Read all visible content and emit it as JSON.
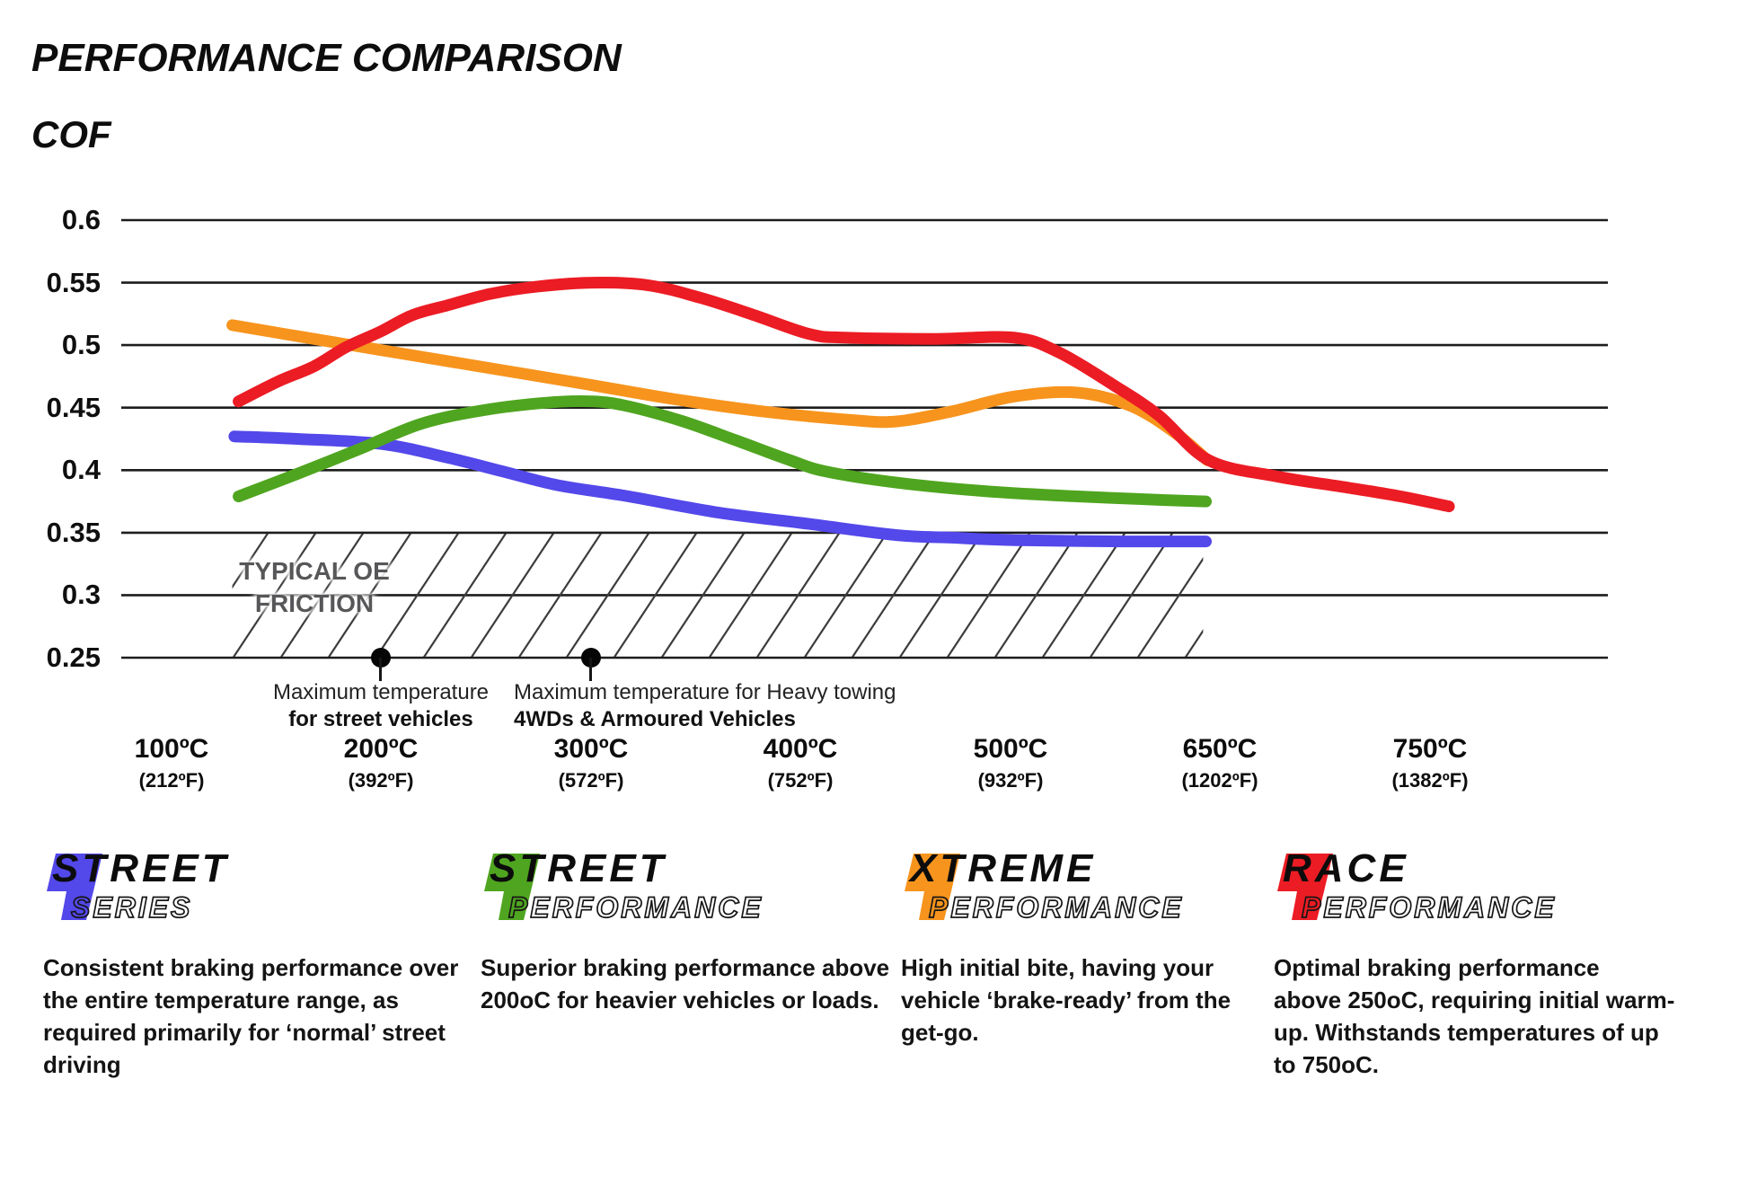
{
  "page": {
    "title": "PERFORMANCE COMPARISON",
    "axis_label": "COF"
  },
  "chart_data": {
    "type": "line",
    "title": "PERFORMANCE COMPARISON",
    "ylabel": "COF",
    "x_unit": "degrees C",
    "ylim": [
      0.25,
      0.6
    ],
    "grid": "horizontal",
    "legend_position": "bottom",
    "y_ticks": [
      {
        "label": "0.6",
        "value": 0.6
      },
      {
        "label": "0.55",
        "value": 0.55
      },
      {
        "label": "0.5",
        "value": 0.5
      },
      {
        "label": "0.45",
        "value": 0.45
      },
      {
        "label": "0.4",
        "value": 0.4
      },
      {
        "label": "0.35",
        "value": 0.35
      },
      {
        "label": "0.3",
        "value": 0.3
      },
      {
        "label": "0.25",
        "value": 0.25
      }
    ],
    "x_ticks": [
      {
        "t": 100,
        "c": "100ºC",
        "f": "(212ºF)"
      },
      {
        "t": 200,
        "c": "200ºC",
        "f": "(392ºF)"
      },
      {
        "t": 300,
        "c": "300ºC",
        "f": "(572ºF)"
      },
      {
        "t": 400,
        "c": "400ºC",
        "f": "(752ºF)"
      },
      {
        "t": 500,
        "c": "500ºC",
        "f": "(932ºF)"
      },
      {
        "t": 650,
        "c": "650ºC",
        "f": "(1202ºF)"
      },
      {
        "t": 750,
        "c": "750ºC",
        "f": "(1382ºF)"
      }
    ],
    "oe_band": {
      "label": "TYPICAL OE\nFRICTION",
      "v_range": [
        0.25,
        0.35
      ],
      "t_range": [
        129,
        638
      ]
    },
    "annotations": [
      {
        "t": 200,
        "v": 0.25,
        "line1": "Maximum temperature",
        "line2": "for street vehicles"
      },
      {
        "t": 300,
        "v": 0.25,
        "line1": "Maximum temperature for Heavy towing",
        "line2": "4WDs & Armoured Vehicles"
      }
    ],
    "series": [
      {
        "name": "Street Series",
        "color": "#5348ea",
        "points": [
          [
            130,
            0.427
          ],
          [
            160,
            0.425
          ],
          [
            200,
            0.421
          ],
          [
            232,
            0.41
          ],
          [
            258,
            0.399
          ],
          [
            284,
            0.388
          ],
          [
            318,
            0.379
          ],
          [
            361,
            0.366
          ],
          [
            404,
            0.357
          ],
          [
            446,
            0.348
          ],
          [
            472,
            0.346
          ],
          [
            503,
            0.344
          ],
          [
            580,
            0.343
          ],
          [
            640,
            0.343
          ]
        ]
      },
      {
        "name": "Street Performance",
        "color": "#4fa51f",
        "points": [
          [
            132,
            0.379
          ],
          [
            160,
            0.397
          ],
          [
            190,
            0.417
          ],
          [
            219,
            0.437
          ],
          [
            249,
            0.448
          ],
          [
            279,
            0.454
          ],
          [
            301,
            0.455
          ],
          [
            318,
            0.451
          ],
          [
            344,
            0.439
          ],
          [
            369,
            0.424
          ],
          [
            395,
            0.408
          ],
          [
            412,
            0.399
          ],
          [
            446,
            0.39
          ],
          [
            489,
            0.383
          ],
          [
            548,
            0.379
          ],
          [
            613,
            0.376
          ],
          [
            640,
            0.375
          ]
        ]
      },
      {
        "name": "Xtreme Performance",
        "color": "#f7941d",
        "points": [
          [
            129,
            0.516
          ],
          [
            168,
            0.505
          ],
          [
            211,
            0.493
          ],
          [
            254,
            0.481
          ],
          [
            297,
            0.469
          ],
          [
            339,
            0.457
          ],
          [
            382,
            0.447
          ],
          [
            425,
            0.44
          ],
          [
            446,
            0.439
          ],
          [
            472,
            0.447
          ],
          [
            503,
            0.459
          ],
          [
            548,
            0.462
          ],
          [
            587,
            0.451
          ],
          [
            619,
            0.429
          ],
          [
            641,
            0.408
          ]
        ]
      },
      {
        "name": "Race Performance",
        "color": "#ec1c24",
        "points": [
          [
            132,
            0.455
          ],
          [
            151,
            0.471
          ],
          [
            168,
            0.483
          ],
          [
            183,
            0.498
          ],
          [
            200,
            0.511
          ],
          [
            215,
            0.524
          ],
          [
            232,
            0.532
          ],
          [
            252,
            0.541
          ],
          [
            275,
            0.547
          ],
          [
            301,
            0.55
          ],
          [
            327,
            0.548
          ],
          [
            352,
            0.538
          ],
          [
            378,
            0.524
          ],
          [
            404,
            0.509
          ],
          [
            421,
            0.506
          ],
          [
            464,
            0.505
          ],
          [
            503,
            0.506
          ],
          [
            535,
            0.494
          ],
          [
            574,
            0.468
          ],
          [
            606,
            0.444
          ],
          [
            642,
            0.408
          ],
          [
            677,
            0.395
          ],
          [
            711,
            0.386
          ],
          [
            736,
            0.379
          ],
          [
            759,
            0.371
          ]
        ]
      }
    ]
  },
  "legends": [
    {
      "word1": "STREET",
      "word2_first": "S",
      "word2_rest": "ERIES",
      "color": "#5348ea",
      "desc": "Consistent braking performance over\nthe entire temperature range, as\nrequired primarily for ‘normal’ street\ndriving"
    },
    {
      "word1": "STREET",
      "word2_first": "P",
      "word2_rest": "ERFORMANCE",
      "color": "#4fa51f",
      "desc": "Superior braking performance above\n200oC for heavier vehicles or loads."
    },
    {
      "word1": "XTREME",
      "word2_first": "P",
      "word2_rest": "ERFORMANCE",
      "color": "#f7941d",
      "desc": "High initial bite, having your\nvehicle ‘brake-ready’ from the\nget-go."
    },
    {
      "word1": "RACE",
      "word2_first": "P",
      "word2_rest": "ERFORMANCE",
      "color": "#ec1c24",
      "desc": "Optimal braking performance\nabove 250oC, requiring initial warm-\nup. Withstands temperatures of up\nto 750oC."
    }
  ]
}
